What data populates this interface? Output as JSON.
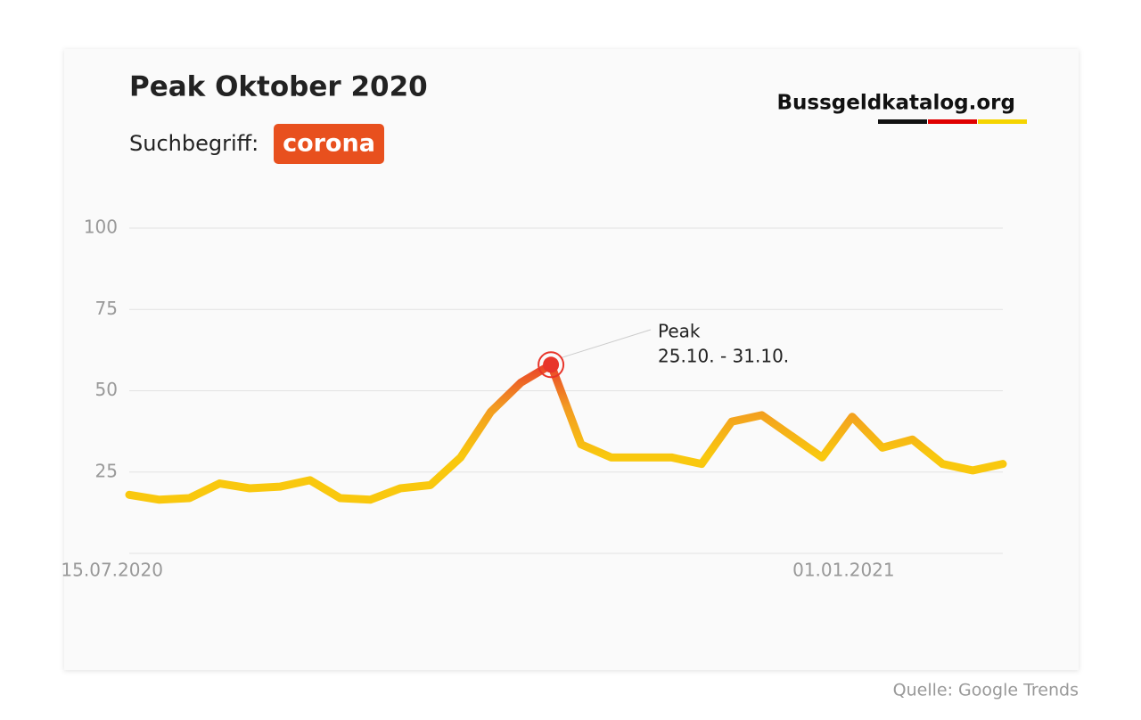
{
  "chart_data": {
    "type": "line",
    "title": "Peak Oktober 2020",
    "subtitle": "Suchbegriff:",
    "search_term": "corona",
    "brand": "Bussgeldkatalog.org",
    "source": "Quelle: Google Trends",
    "x": [
      "19.07.2020",
      "26.07.2020",
      "02.08.2020",
      "09.08.2020",
      "16.08.2020",
      "23.08.2020",
      "30.08.2020",
      "06.09.2020",
      "13.09.2020",
      "20.09.2020",
      "27.09.2020",
      "04.10.2020",
      "11.10.2020",
      "18.10.2020",
      "25.10.2020",
      "01.11.2020",
      "08.11.2020",
      "15.11.2020",
      "22.11.2020",
      "29.11.2020",
      "06.12.2020",
      "13.12.2020",
      "20.12.2020",
      "27.12.2020",
      "03.01.2021",
      "10.01.2021",
      "17.01.2021",
      "24.01.2021",
      "31.01.2021",
      "07.02.2021"
    ],
    "series": [
      {
        "name": "corona",
        "color": "#f7c00f",
        "values": [
          18,
          16.5,
          17,
          21.5,
          20,
          20.5,
          22.5,
          17,
          16.5,
          20,
          21,
          29.5,
          43.5,
          52.5,
          58,
          33.5,
          29.5,
          29.5,
          29.5,
          27.5,
          40.5,
          42.5,
          36,
          29.5,
          42,
          32.5,
          35,
          27.5,
          25.5,
          27.5
        ]
      }
    ],
    "gradient": [
      "#f9c80e",
      "#f29a22",
      "#e8352a"
    ],
    "xlim": [
      "19.07.2020",
      "07.02.2021"
    ],
    "xticks": [
      "15.07.2020",
      "01.01.2021"
    ],
    "ylim": [
      0,
      100
    ],
    "yticks": [
      25,
      50,
      75,
      100
    ],
    "grid": true,
    "annotation": {
      "index": 14,
      "lines": [
        "Peak",
        "25.10. - 31.10."
      ],
      "color": "#e8352a"
    },
    "badge_color": "#e8501e"
  }
}
